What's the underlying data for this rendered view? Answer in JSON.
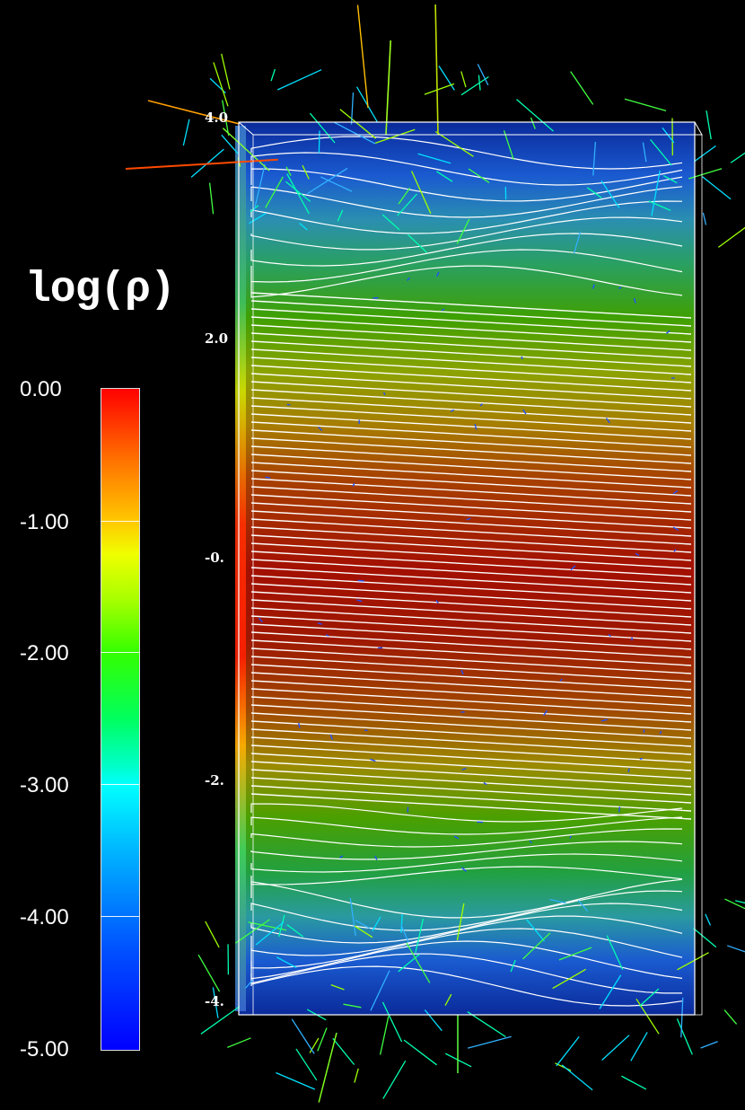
{
  "colorbar": {
    "title": "log(ρ)",
    "ticks": [
      "0.00",
      "-1.00",
      "-2.00",
      "-3.00",
      "-4.00",
      "-5.00"
    ],
    "range": [
      0,
      -5
    ],
    "colors": [
      "#ff0000",
      "#ffc800",
      "#33ff00",
      "#00ffff",
      "#0000ff"
    ]
  },
  "axis": {
    "labels": [
      "4.0",
      "2.0",
      "-0.",
      "-2.",
      "-4."
    ]
  },
  "scene": {
    "field_line_color": "#ffffff",
    "background": "#000000"
  }
}
